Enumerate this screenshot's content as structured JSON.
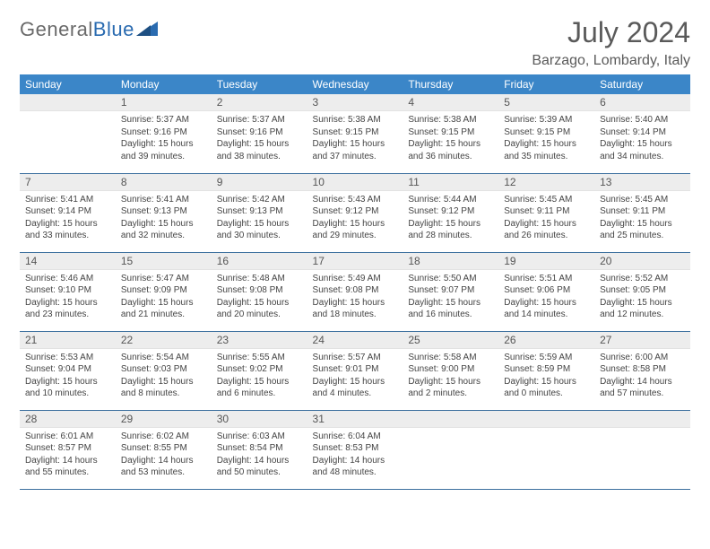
{
  "logo": {
    "text1": "General",
    "text2": "Blue"
  },
  "title": "July 2024",
  "location": "Barzago, Lombardy, Italy",
  "colors": {
    "header_bg": "#3b86c8",
    "header_text": "#ffffff",
    "daynum_bg": "#ededed",
    "border": "#3b6f9e",
    "text": "#444444",
    "title_text": "#5a5a5a"
  },
  "weekdays": [
    "Sunday",
    "Monday",
    "Tuesday",
    "Wednesday",
    "Thursday",
    "Friday",
    "Saturday"
  ],
  "first_weekday_index": 1,
  "days": [
    {
      "n": 1,
      "sunrise": "5:37 AM",
      "sunset": "9:16 PM",
      "daylight": "15 hours and 39 minutes."
    },
    {
      "n": 2,
      "sunrise": "5:37 AM",
      "sunset": "9:16 PM",
      "daylight": "15 hours and 38 minutes."
    },
    {
      "n": 3,
      "sunrise": "5:38 AM",
      "sunset": "9:15 PM",
      "daylight": "15 hours and 37 minutes."
    },
    {
      "n": 4,
      "sunrise": "5:38 AM",
      "sunset": "9:15 PM",
      "daylight": "15 hours and 36 minutes."
    },
    {
      "n": 5,
      "sunrise": "5:39 AM",
      "sunset": "9:15 PM",
      "daylight": "15 hours and 35 minutes."
    },
    {
      "n": 6,
      "sunrise": "5:40 AM",
      "sunset": "9:14 PM",
      "daylight": "15 hours and 34 minutes."
    },
    {
      "n": 7,
      "sunrise": "5:41 AM",
      "sunset": "9:14 PM",
      "daylight": "15 hours and 33 minutes."
    },
    {
      "n": 8,
      "sunrise": "5:41 AM",
      "sunset": "9:13 PM",
      "daylight": "15 hours and 32 minutes."
    },
    {
      "n": 9,
      "sunrise": "5:42 AM",
      "sunset": "9:13 PM",
      "daylight": "15 hours and 30 minutes."
    },
    {
      "n": 10,
      "sunrise": "5:43 AM",
      "sunset": "9:12 PM",
      "daylight": "15 hours and 29 minutes."
    },
    {
      "n": 11,
      "sunrise": "5:44 AM",
      "sunset": "9:12 PM",
      "daylight": "15 hours and 28 minutes."
    },
    {
      "n": 12,
      "sunrise": "5:45 AM",
      "sunset": "9:11 PM",
      "daylight": "15 hours and 26 minutes."
    },
    {
      "n": 13,
      "sunrise": "5:45 AM",
      "sunset": "9:11 PM",
      "daylight": "15 hours and 25 minutes."
    },
    {
      "n": 14,
      "sunrise": "5:46 AM",
      "sunset": "9:10 PM",
      "daylight": "15 hours and 23 minutes."
    },
    {
      "n": 15,
      "sunrise": "5:47 AM",
      "sunset": "9:09 PM",
      "daylight": "15 hours and 21 minutes."
    },
    {
      "n": 16,
      "sunrise": "5:48 AM",
      "sunset": "9:08 PM",
      "daylight": "15 hours and 20 minutes."
    },
    {
      "n": 17,
      "sunrise": "5:49 AM",
      "sunset": "9:08 PM",
      "daylight": "15 hours and 18 minutes."
    },
    {
      "n": 18,
      "sunrise": "5:50 AM",
      "sunset": "9:07 PM",
      "daylight": "15 hours and 16 minutes."
    },
    {
      "n": 19,
      "sunrise": "5:51 AM",
      "sunset": "9:06 PM",
      "daylight": "15 hours and 14 minutes."
    },
    {
      "n": 20,
      "sunrise": "5:52 AM",
      "sunset": "9:05 PM",
      "daylight": "15 hours and 12 minutes."
    },
    {
      "n": 21,
      "sunrise": "5:53 AM",
      "sunset": "9:04 PM",
      "daylight": "15 hours and 10 minutes."
    },
    {
      "n": 22,
      "sunrise": "5:54 AM",
      "sunset": "9:03 PM",
      "daylight": "15 hours and 8 minutes."
    },
    {
      "n": 23,
      "sunrise": "5:55 AM",
      "sunset": "9:02 PM",
      "daylight": "15 hours and 6 minutes."
    },
    {
      "n": 24,
      "sunrise": "5:57 AM",
      "sunset": "9:01 PM",
      "daylight": "15 hours and 4 minutes."
    },
    {
      "n": 25,
      "sunrise": "5:58 AM",
      "sunset": "9:00 PM",
      "daylight": "15 hours and 2 minutes."
    },
    {
      "n": 26,
      "sunrise": "5:59 AM",
      "sunset": "8:59 PM",
      "daylight": "15 hours and 0 minutes."
    },
    {
      "n": 27,
      "sunrise": "6:00 AM",
      "sunset": "8:58 PM",
      "daylight": "14 hours and 57 minutes."
    },
    {
      "n": 28,
      "sunrise": "6:01 AM",
      "sunset": "8:57 PM",
      "daylight": "14 hours and 55 minutes."
    },
    {
      "n": 29,
      "sunrise": "6:02 AM",
      "sunset": "8:55 PM",
      "daylight": "14 hours and 53 minutes."
    },
    {
      "n": 30,
      "sunrise": "6:03 AM",
      "sunset": "8:54 PM",
      "daylight": "14 hours and 50 minutes."
    },
    {
      "n": 31,
      "sunrise": "6:04 AM",
      "sunset": "8:53 PM",
      "daylight": "14 hours and 48 minutes."
    }
  ],
  "labels": {
    "sunrise": "Sunrise:",
    "sunset": "Sunset:",
    "daylight": "Daylight:"
  }
}
